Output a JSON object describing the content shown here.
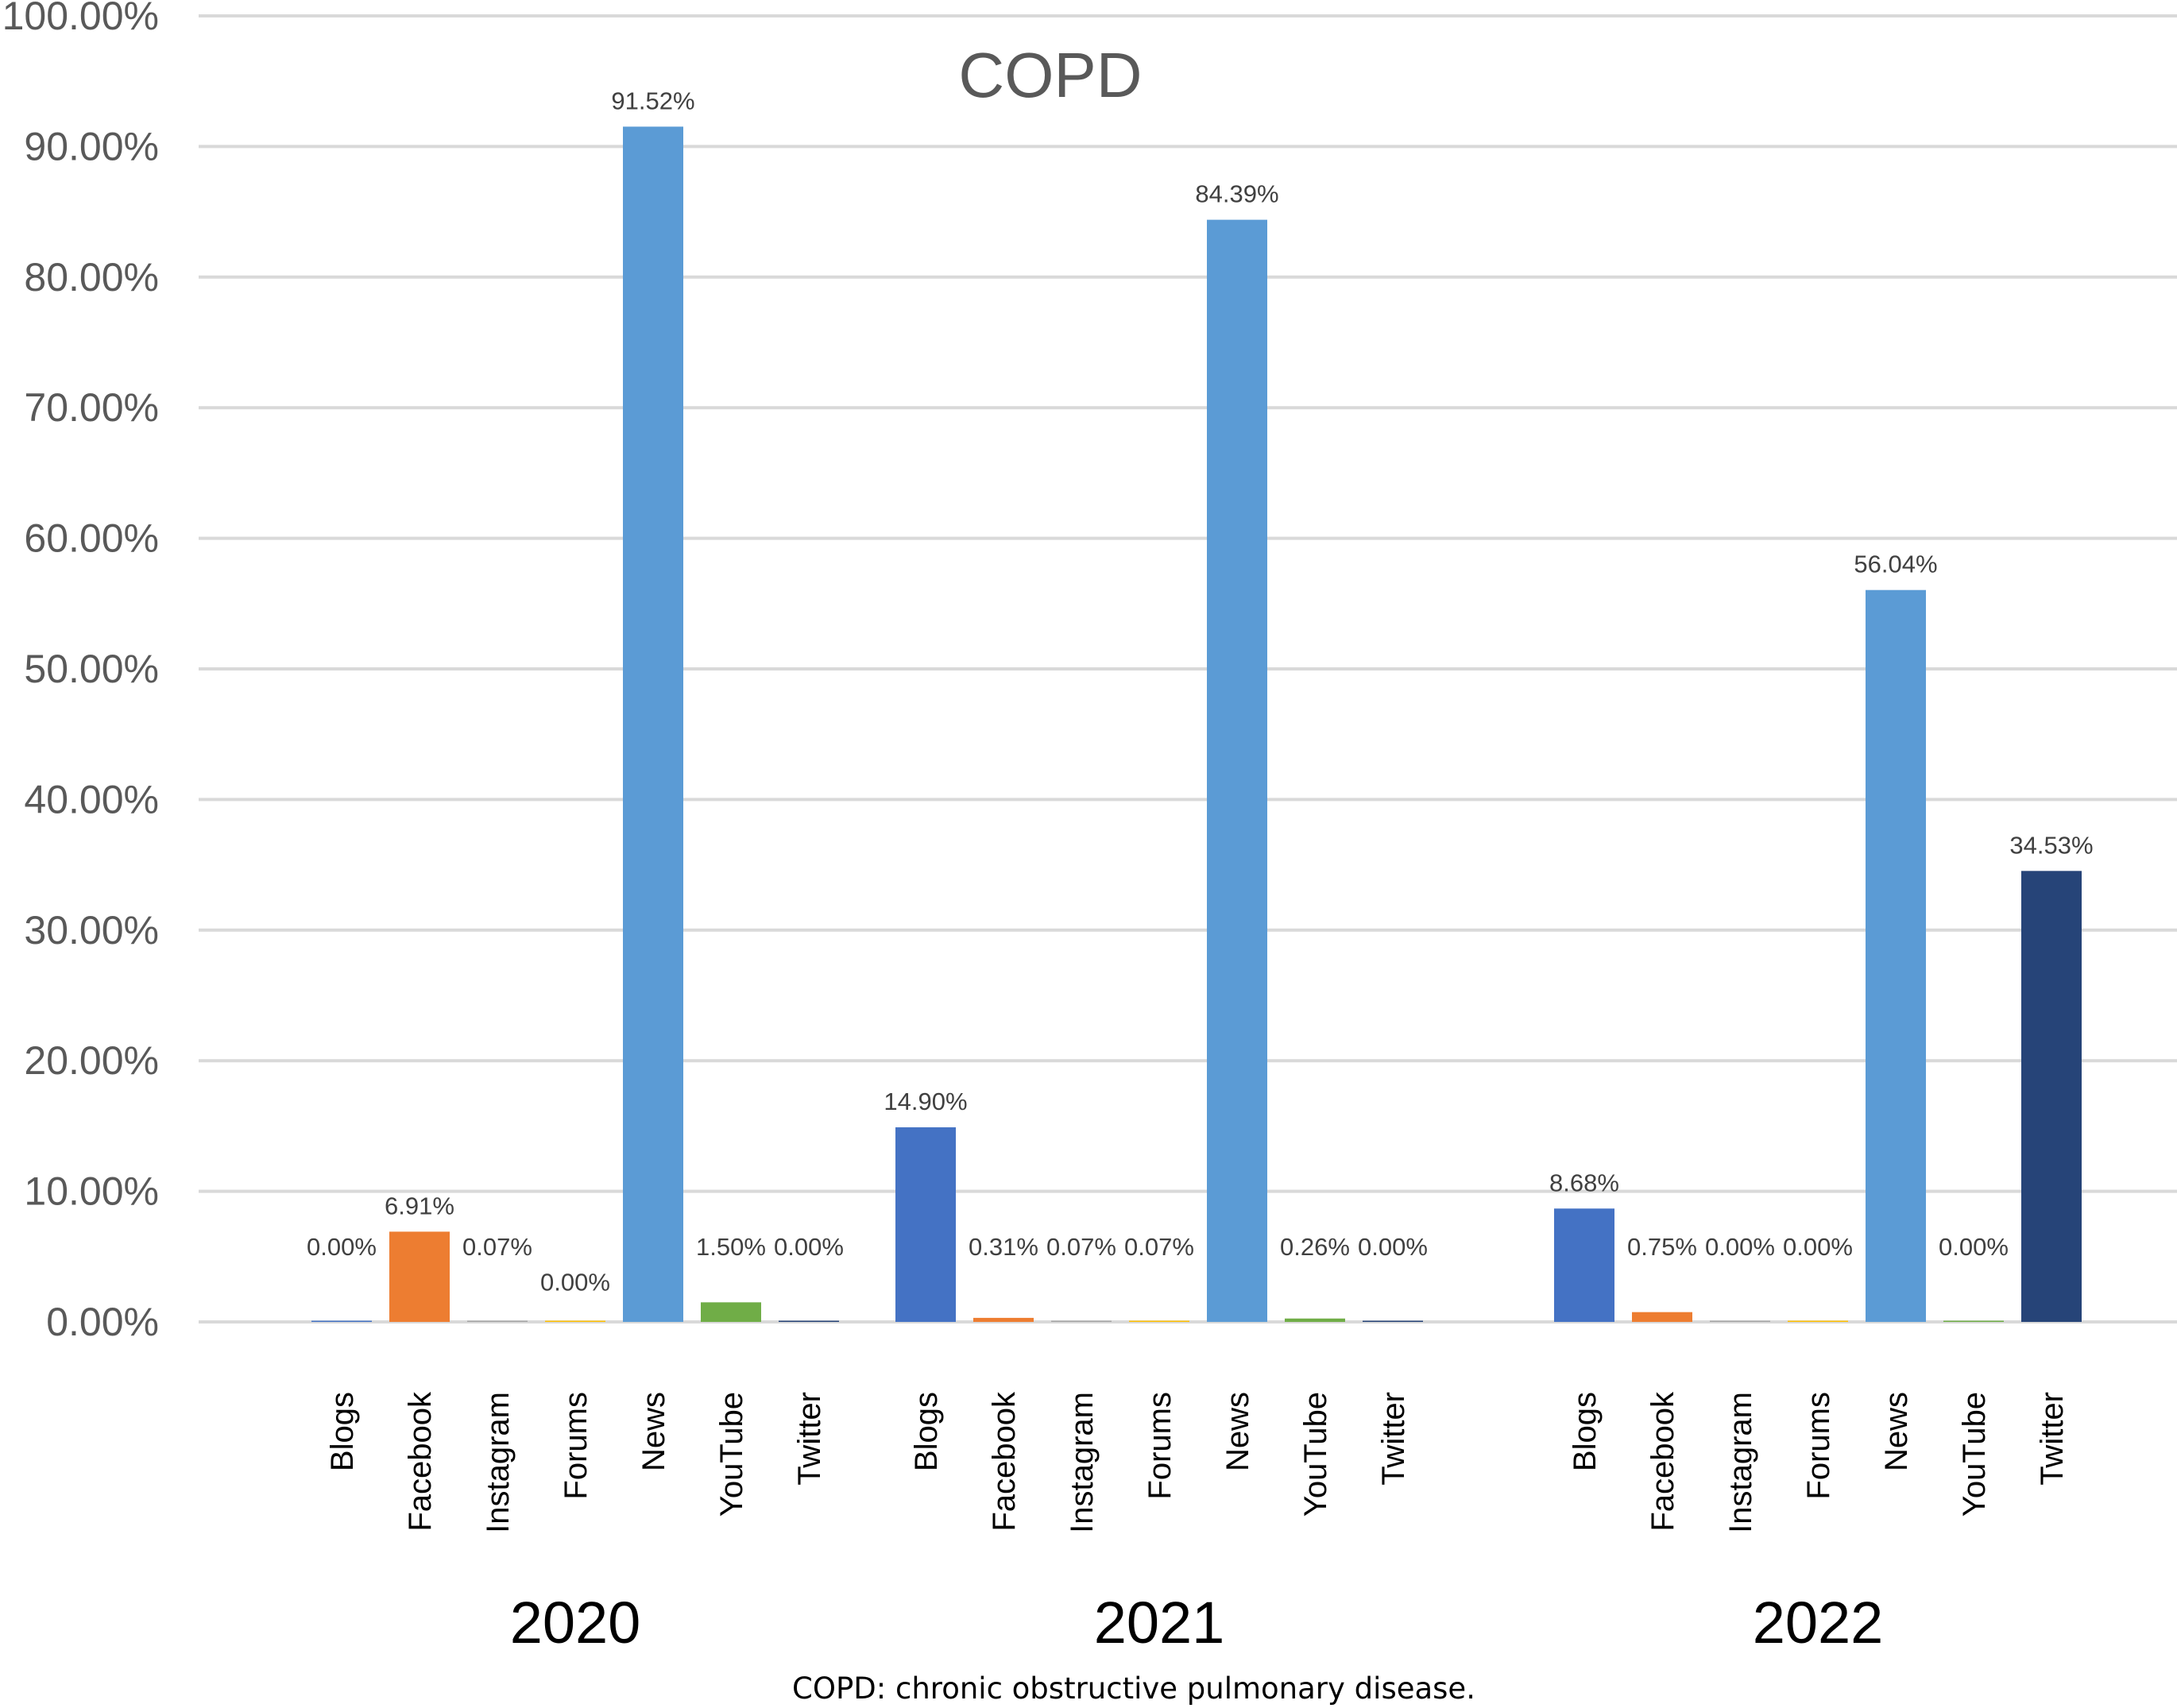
{
  "chart_data": {
    "type": "bar",
    "title": "COPD",
    "caption": "COPD: chronic obstructive pulmonary disease.",
    "xlabel": "",
    "ylabel": "",
    "ylim": [
      0,
      100
    ],
    "yticks": [
      "0.00%",
      "10.00%",
      "20.00%",
      "30.00%",
      "40.00%",
      "50.00%",
      "60.00%",
      "70.00%",
      "80.00%",
      "90.00%",
      "100.00%"
    ],
    "grid": true,
    "legend": "none",
    "categories": [
      "Blogs",
      "Facebook",
      "Instagram",
      "Forums",
      "News",
      "YouTube",
      "Twitter"
    ],
    "category_colors": [
      "#4472C4",
      "#ED7D31",
      "#A5A5A5",
      "#FFC000",
      "#5B9BD5",
      "#70AD47",
      "#264478"
    ],
    "groups": [
      {
        "name": "2020",
        "values": [
          0.0,
          6.91,
          0.07,
          0.0,
          91.52,
          1.5,
          0.0
        ],
        "labels": [
          "0.00%",
          "6.91%",
          "0.07%",
          "0.00%",
          "91.52%",
          "1.50%",
          "0.00%"
        ]
      },
      {
        "name": "2021",
        "values": [
          14.9,
          0.31,
          0.07,
          0.07,
          84.39,
          0.26,
          0.0
        ],
        "labels": [
          "14.90%",
          "0.31%",
          "0.07%",
          "0.07%",
          "84.39%",
          "0.26%",
          "0.00%"
        ]
      },
      {
        "name": "2022",
        "values": [
          8.68,
          0.75,
          0.0,
          0.0,
          56.04,
          0.0,
          34.53
        ],
        "labels": [
          "8.68%",
          "0.75%",
          "0.00%",
          "0.00%",
          "56.04%",
          "0.00%",
          "34.53%"
        ]
      }
    ]
  }
}
